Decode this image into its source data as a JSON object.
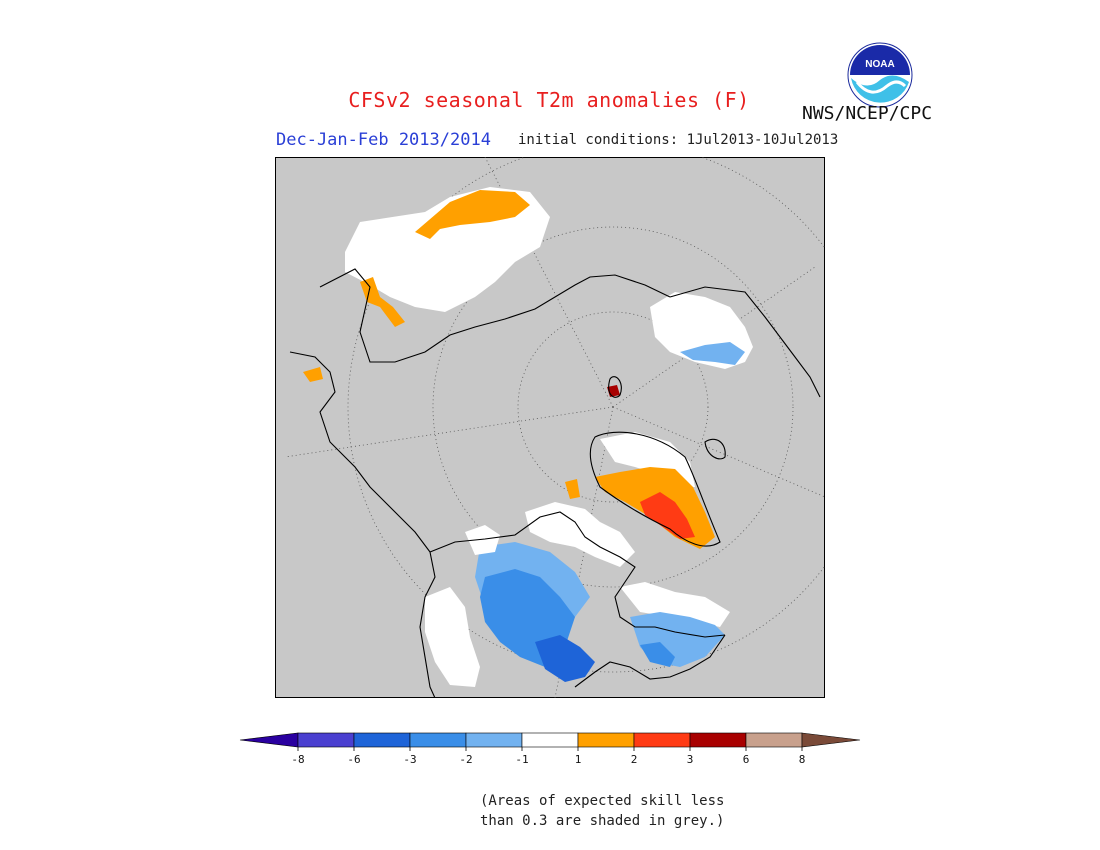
{
  "header": {
    "title": "CFSv2 seasonal T2m anomalies (F)",
    "agency": "NWS/NCEP/CPC",
    "period": "Dec-Jan-Feb 2013/2014",
    "initial_conditions": "initial conditions: 1Jul2013-10Jul2013",
    "logo_text": "NOAA"
  },
  "colors": {
    "title": "#e81f1f",
    "period": "#2a3fd6",
    "background_skill": "#c8c8c8"
  },
  "colorbar": {
    "ticks": [
      "-8",
      "-6",
      "-3",
      "-2",
      "-1",
      "1",
      "2",
      "3",
      "6",
      "8"
    ],
    "bins": [
      {
        "color": "#2a00a0"
      },
      {
        "color": "#4a3fd0"
      },
      {
        "color": "#1e64d8"
      },
      {
        "color": "#3a8ee8"
      },
      {
        "color": "#72b2f0"
      },
      {
        "color": "#ffffff"
      },
      {
        "color": "#ffa000"
      },
      {
        "color": "#ff3b14"
      },
      {
        "color": "#a80000"
      },
      {
        "color": "#c8a08c"
      },
      {
        "color": "#7a4a38"
      }
    ]
  },
  "footnote": {
    "line1": "(Areas of expected skill less",
    "line2": "than 0.3 are shaded in grey.)"
  }
}
